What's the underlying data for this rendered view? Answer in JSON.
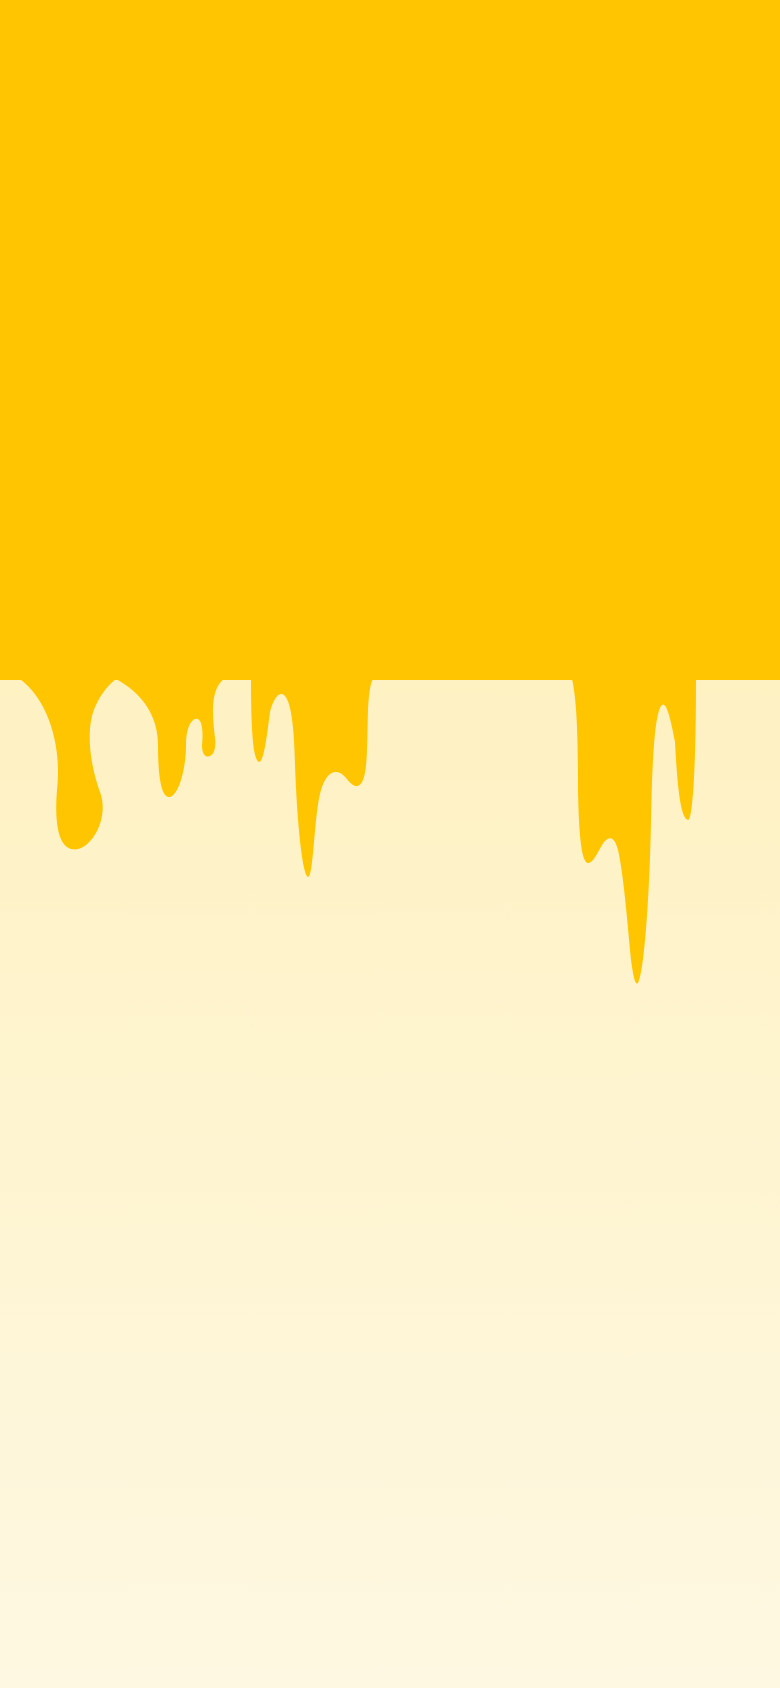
{
  "screen": {
    "description_visible_text": "",
    "colors": {
      "honey": "#FFC500",
      "background_top": "#FEE89A",
      "background_mid": "#FEF1C2",
      "background_bottom": "#FEF8E2"
    }
  }
}
